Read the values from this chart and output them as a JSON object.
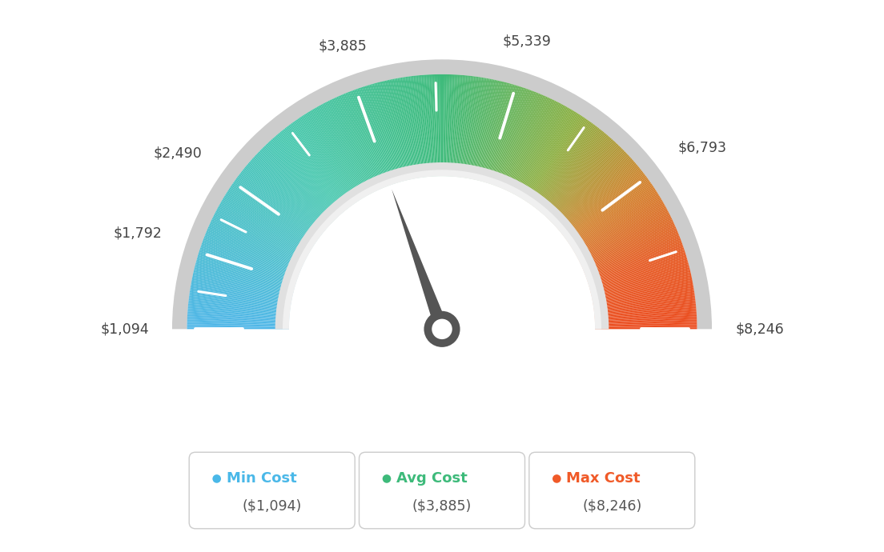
{
  "min_val": 1094,
  "max_val": 8246,
  "avg_val": 3885,
  "tick_labels": [
    "$1,094",
    "$1,792",
    "$2,490",
    "$3,885",
    "$5,339",
    "$6,793",
    "$8,246"
  ],
  "tick_values": [
    1094,
    1792,
    2490,
    3885,
    5339,
    6793,
    8246
  ],
  "legend_labels": [
    "Min Cost",
    "Avg Cost",
    "Max Cost"
  ],
  "legend_values": [
    "($1,094)",
    "($3,885)",
    "($8,246)"
  ],
  "legend_colors": [
    "#4ab8e8",
    "#3dba7a",
    "#f05a28"
  ],
  "bg_color": "#ffffff",
  "needle_value": 3885,
  "needle_color": "#555555",
  "outer_ring_color": "#cccccc",
  "inner_ring_color": "#d8d8d8",
  "color_stops": [
    [
      0.0,
      [
        78,
        182,
        232
      ]
    ],
    [
      0.25,
      [
        72,
        195,
        180
      ]
    ],
    [
      0.5,
      [
        61,
        186,
        122
      ]
    ],
    [
      0.65,
      [
        120,
        180,
        80
      ]
    ],
    [
      0.75,
      [
        190,
        160,
        60
      ]
    ],
    [
      0.85,
      [
        220,
        120,
        50
      ]
    ],
    [
      1.0,
      [
        235,
        80,
        30
      ]
    ]
  ]
}
